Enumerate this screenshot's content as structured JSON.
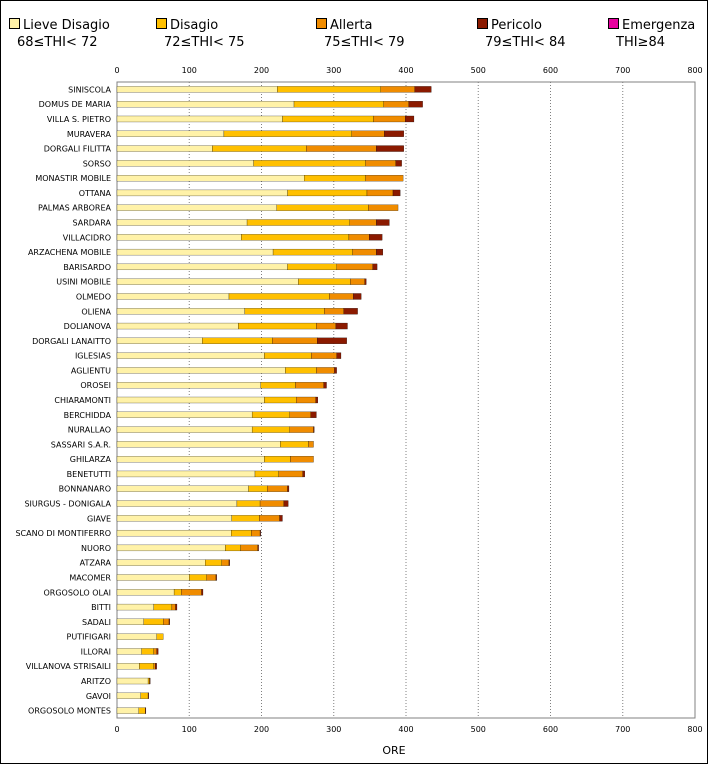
{
  "legend": [
    {
      "label": "Lieve Disagio",
      "range": "68≤THI< 72",
      "color": "#FFF2A8"
    },
    {
      "label": "Disagio",
      "range": "72≤THI< 75",
      "color": "#FFC000"
    },
    {
      "label": "Allerta",
      "range": "75≤THI< 79",
      "color": "#F08C00"
    },
    {
      "label": "Pericolo",
      "range": "79≤THI< 84",
      "color": "#8B1A00"
    },
    {
      "label": "Emergenza",
      "range": "THI≥84",
      "color": "#E800A0"
    }
  ],
  "chart_data": {
    "type": "bar",
    "orientation": "horizontal",
    "stacked": true,
    "xlabel": "ORE",
    "xlim": [
      0,
      800
    ],
    "x_ticks": [
      "0",
      "100",
      "200",
      "300",
      "400",
      "500",
      "600",
      "700",
      "800"
    ],
    "grid": true,
    "legend_position": "top",
    "categories": [
      "SINISCOLA",
      "DOMUS DE MARIA",
      "VILLA S. PIETRO",
      "MURAVERA",
      "DORGALI FILITTA",
      "SORSO",
      "MONASTIR MOBILE",
      "OTTANA",
      "PALMAS ARBOREA",
      "SARDARA",
      "VILLACIDRO",
      "ARZACHENA MOBILE",
      "BARISARDO",
      "USINI MOBILE",
      "OLMEDO",
      "OLIENA",
      "DOLIANOVA",
      "DORGALI LANAITTO",
      "IGLESIAS",
      "AGLIENTU",
      "OROSEI",
      "CHIARAMONTI",
      "BERCHIDDA",
      "NURALLAO",
      "SASSARI S.A.R.",
      "GHILARZA",
      "BENETUTTI",
      "BONNANARO",
      "SIURGUS - DONIGALA",
      "GIAVE",
      "SCANO DI MONTIFERRO",
      "NUORO",
      "ATZARA",
      "MACOMER",
      "ORGOSOLO OLAI",
      "BITTI",
      "SADALI",
      "PUTIFIGARI",
      "ILLORAI",
      "VILLANOVA STRISAILI",
      "ARITZO",
      "GAVOI",
      "ORGOSOLO MONTES"
    ],
    "series": [
      {
        "name": "Lieve Disagio",
        "values": [
          222,
          245,
          229,
          148,
          132,
          189,
          259,
          236,
          221,
          180,
          172,
          216,
          236,
          251,
          155,
          177,
          168,
          118,
          204,
          233,
          199,
          204,
          187,
          187,
          226,
          204,
          191,
          182,
          166,
          159,
          158,
          150,
          122,
          100,
          79,
          51,
          37,
          55,
          34,
          31,
          43,
          33,
          30
        ]
      },
      {
        "name": "Disagio",
        "values": [
          143,
          124,
          126,
          177,
          130,
          155,
          85,
          110,
          127,
          142,
          149,
          110,
          68,
          72,
          139,
          110,
          108,
          97,
          65,
          43,
          48,
          44,
          52,
          52,
          39,
          36,
          33,
          26,
          32,
          38,
          28,
          21,
          23,
          24,
          10,
          25,
          27,
          9,
          17,
          20,
          2,
          10,
          9
        ]
      },
      {
        "name": "Allerta",
        "values": [
          47,
          35,
          44,
          45,
          97,
          42,
          52,
          36,
          41,
          37,
          28,
          33,
          50,
          20,
          33,
          27,
          27,
          62,
          35,
          25,
          39,
          27,
          29,
          33,
          7,
          32,
          33,
          28,
          33,
          28,
          12,
          24,
          10,
          13,
          28,
          5,
          8,
          0,
          4,
          2,
          0,
          0,
          0
        ]
      },
      {
        "name": "Pericolo",
        "values": [
          23,
          19,
          12,
          27,
          38,
          8,
          0,
          10,
          0,
          18,
          18,
          9,
          6,
          2,
          11,
          19,
          16,
          41,
          6,
          3,
          4,
          3,
          8,
          1,
          0,
          0,
          3,
          2,
          6,
          4,
          1,
          1,
          1,
          1,
          2,
          2,
          1,
          0,
          2,
          2,
          1,
          1,
          1
        ]
      },
      {
        "name": "Emergenza",
        "values": [
          0,
          0,
          0,
          0,
          0,
          0,
          0,
          0,
          0,
          0,
          0,
          0,
          0,
          0,
          0,
          0,
          0,
          0,
          0,
          0,
          0,
          0,
          0,
          0,
          0,
          0,
          0,
          0,
          0,
          0,
          0,
          0,
          0,
          0,
          0,
          0,
          0,
          0,
          0,
          0,
          0,
          0,
          0
        ]
      }
    ]
  }
}
